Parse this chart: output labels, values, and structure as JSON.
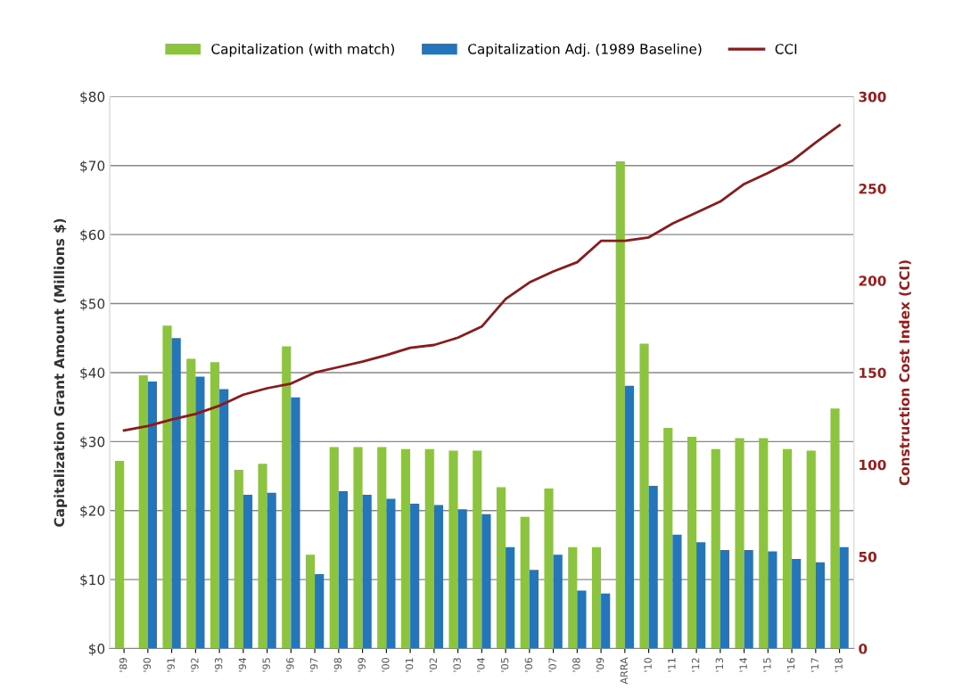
{
  "chart_data": {
    "type": "bar",
    "ylabel": "Capitalization Grant Amount (Millions $)",
    "y2label": "Construction Cost Index (CCI)",
    "categories": [
      "'89",
      "'90",
      "'91",
      "'92",
      "'93",
      "'94",
      "'95",
      "'96",
      "'97",
      "'98",
      "'99",
      "'00",
      "'01",
      "'02",
      "'03",
      "'04",
      "'05",
      "'06",
      "'07",
      "'08",
      "'09",
      "ARRA",
      "'10",
      "'11",
      "'12",
      "'13",
      "'14",
      "'15",
      "'16",
      "'17",
      "'18"
    ],
    "series": [
      {
        "name": "Capitalization (with match)",
        "color": "#8cc43f",
        "values": [
          27.2,
          39.6,
          46.8,
          42.0,
          41.5,
          25.9,
          26.8,
          43.8,
          13.6,
          29.2,
          29.2,
          29.2,
          28.9,
          28.9,
          28.7,
          28.7,
          23.4,
          19.1,
          23.2,
          14.7,
          14.7,
          70.6,
          44.2,
          32.0,
          30.7,
          28.9,
          30.5,
          30.5,
          28.9,
          28.7,
          34.8
        ]
      },
      {
        "name": "Capitalization Adj. (1989 Baseline)",
        "color": "#2475b9",
        "values": [
          null,
          38.7,
          45.0,
          39.4,
          37.6,
          22.3,
          22.6,
          36.4,
          10.8,
          22.8,
          22.3,
          21.7,
          21.0,
          20.8,
          20.2,
          19.5,
          14.7,
          11.4,
          13.6,
          8.4,
          8.0,
          38.1,
          23.6,
          16.5,
          15.4,
          14.3,
          14.3,
          14.1,
          13.0,
          12.5,
          14.7
        ]
      },
      {
        "name": "CCI",
        "type": "line",
        "axis": "y2",
        "color": "#8b1a1a",
        "values": [
          118.6,
          121,
          124.5,
          127.5,
          132,
          138,
          141.5,
          144,
          150,
          153,
          156,
          159.5,
          163.5,
          165,
          169,
          175,
          190,
          199,
          205,
          210,
          221.6,
          221.6,
          223.5,
          231,
          237,
          243,
          252.5,
          258.5,
          265,
          275,
          284.5
        ]
      }
    ],
    "ylim": [
      0,
      80
    ],
    "yticks": [
      {
        "value": 0,
        "label": "$0"
      },
      {
        "value": 10,
        "label": "$10"
      },
      {
        "value": 20,
        "label": "$20"
      },
      {
        "value": 30,
        "label": "$30"
      },
      {
        "value": 40,
        "label": "$40"
      },
      {
        "value": 50,
        "label": "$50"
      },
      {
        "value": 60,
        "label": "$60"
      },
      {
        "value": 70,
        "label": "$70"
      },
      {
        "value": 80,
        "label": "$80"
      }
    ],
    "y2lim": [
      0,
      300
    ],
    "y2ticks": [
      0,
      50,
      100,
      150,
      200,
      250,
      300
    ],
    "grid": "y",
    "legend": "top",
    "marker": "none",
    "line_style": "solid"
  }
}
